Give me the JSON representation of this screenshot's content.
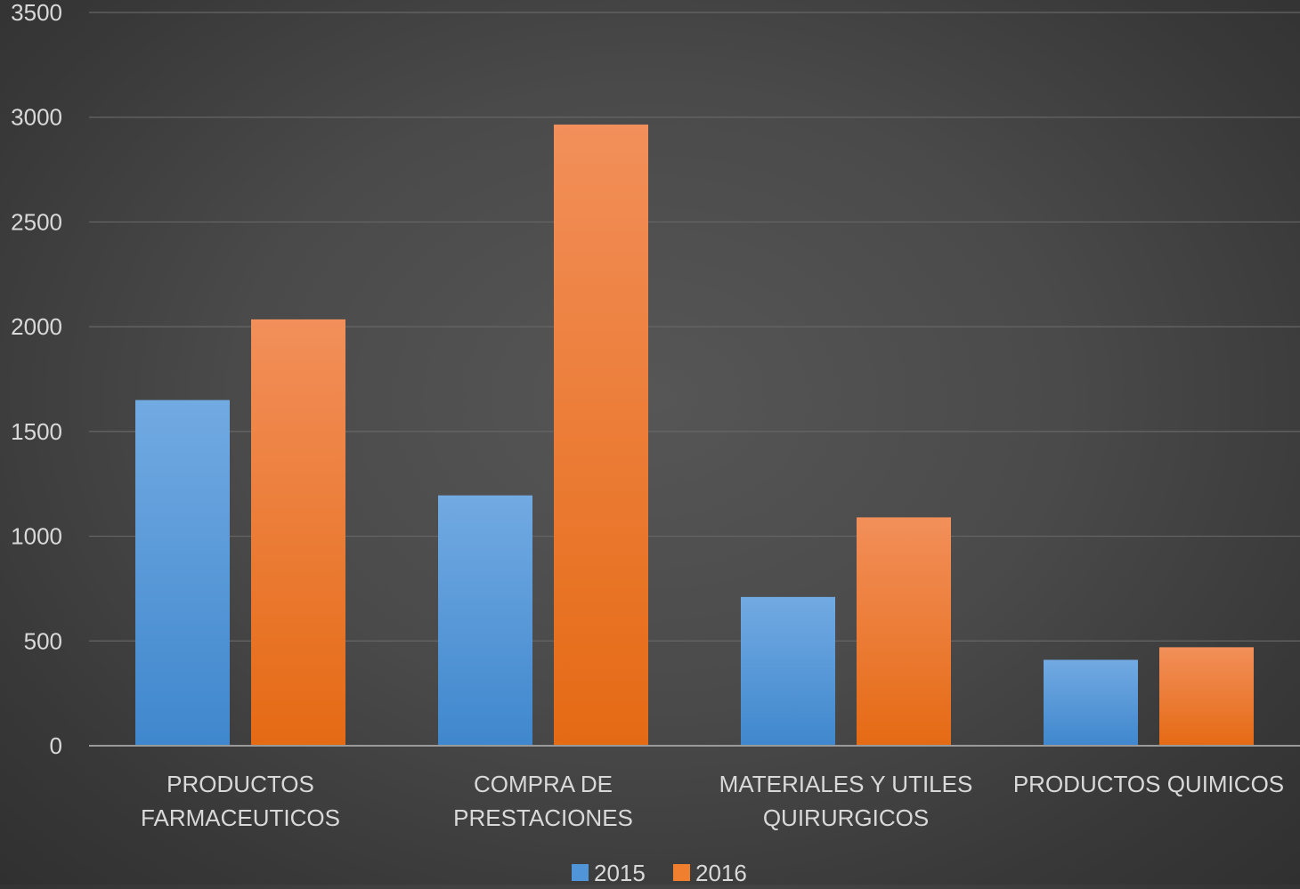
{
  "chart_data": {
    "type": "bar",
    "title": "",
    "xlabel": "",
    "ylabel": "",
    "categories": [
      [
        "PRODUCTOS",
        "FARMACEUTICOS"
      ],
      [
        "COMPRA DE",
        "PRESTACIONES"
      ],
      [
        "MATERIALES Y UTILES",
        "QUIRURGICOS"
      ],
      [
        "PRODUCTOS QUIMICOS"
      ]
    ],
    "series": [
      {
        "name": "2015",
        "values": [
          1650,
          1195,
          710,
          410
        ],
        "color": "#4f95d8"
      },
      {
        "name": "2016",
        "values": [
          2035,
          2965,
          1090,
          470
        ],
        "color": "#f07f2f"
      }
    ],
    "ylim": [
      0,
      3500
    ],
    "yticks": [
      0,
      500,
      1000,
      1500,
      2000,
      2500,
      3000,
      3500
    ],
    "grid": true,
    "legend_position": "bottom-center"
  }
}
